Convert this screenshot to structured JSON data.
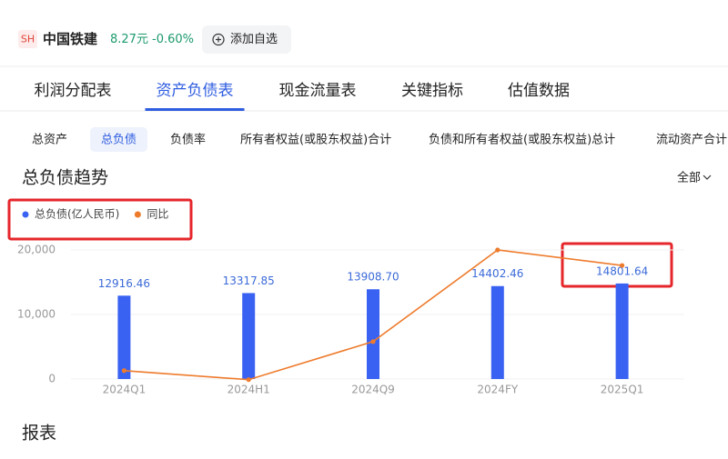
{
  "header": {
    "badge": "SH",
    "name": "中国铁建",
    "price": "8.27元",
    "change": "-0.60%",
    "button": "添加自选"
  },
  "tabs": [
    "利润分配表",
    "资产负债表",
    "现金流量表",
    "关键指标",
    "估值数据"
  ],
  "active_tab": 1,
  "subtabs": [
    "总资产",
    "总负债",
    "负债率",
    "所有者权益(或股东权益)合计",
    "负债和所有者权益(或股东权益)总计",
    "流动资产合计"
  ],
  "active_subtab": 1,
  "section_title": "总负债趋势",
  "filter": "全部",
  "chart_data": {
    "type": "combo",
    "categories": [
      "2024Q1",
      "2024H1",
      "2024Q9",
      "2024FY",
      "2025Q1"
    ],
    "series": [
      {
        "name": "总负债(亿人民币)",
        "type": "bar",
        "color": "#3a62f2",
        "values": [
          12916.46,
          13317.85,
          13908.7,
          14402.46,
          14801.64
        ],
        "value_labels": [
          "12916.46",
          "13317.85",
          "13908.70",
          "14402.46",
          "14801.64"
        ]
      },
      {
        "name": "同比",
        "type": "line",
        "axis": "y2",
        "color": "#ee7b2c",
        "values": [
          1.3,
          -0.1,
          5.8,
          20,
          17.6
        ]
      }
    ],
    "ylim": [
      0,
      20000
    ],
    "yticks": [
      0,
      {
        "value": 10000,
        "label": "10,000"
      },
      {
        "value": 20000,
        "label": "20,000"
      }
    ],
    "y2lim": [
      0,
      20
    ],
    "grid": true
  },
  "footer_title": "报表"
}
